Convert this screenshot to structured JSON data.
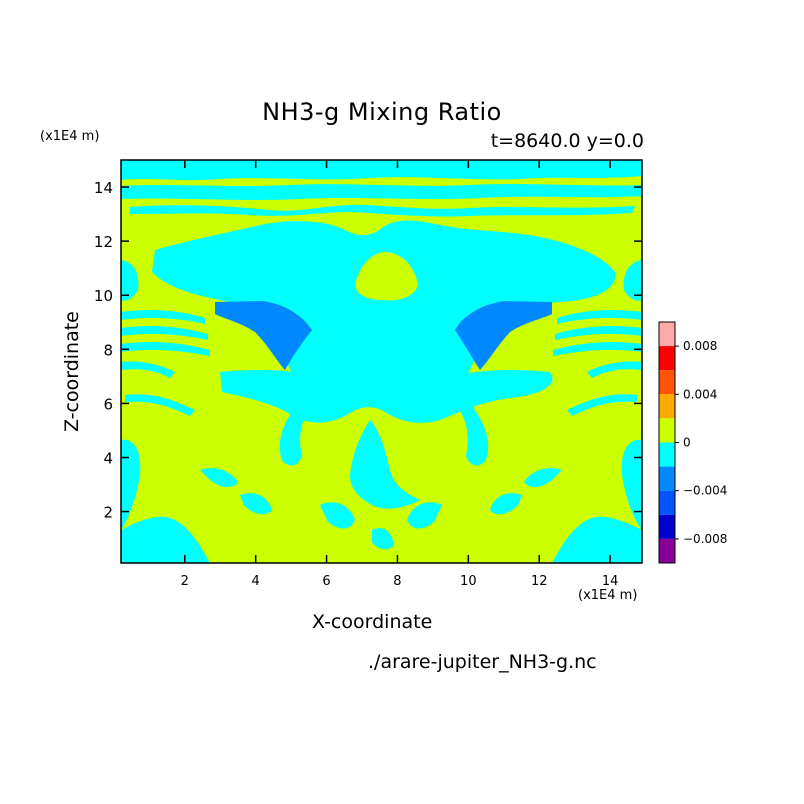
{
  "chart_data": {
    "type": "heatmap",
    "title": "NH3-g Mixing Ratio",
    "subtitle": "t=8640.0 y=0.0",
    "xlabel": "X-coordinate",
    "ylabel": "Z-coordinate",
    "x_units": "(x1E4 m)",
    "y_units": "(x1E4 m)",
    "xlim": [
      0.2,
      14.9
    ],
    "ylim": [
      0.1,
      15.0
    ],
    "x_ticks": [
      2,
      4,
      6,
      8,
      10,
      12,
      14
    ],
    "y_ticks": [
      2,
      4,
      6,
      8,
      10,
      12,
      14
    ],
    "colorbar": {
      "ticks": [
        0.008,
        0.004,
        0,
        -0.004,
        -0.008
      ],
      "tick_labels": [
        "0.008",
        "0.004",
        "0",
        "−0.004",
        "−0.008"
      ],
      "levels": [
        {
          "from": 0.008,
          "to": 0.01,
          "color": "#ffaaaa"
        },
        {
          "from": 0.006,
          "to": 0.008,
          "color": "#ff0000"
        },
        {
          "from": 0.004,
          "to": 0.006,
          "color": "#ff5500"
        },
        {
          "from": 0.002,
          "to": 0.004,
          "color": "#ffaa00"
        },
        {
          "from": 0.0,
          "to": 0.002,
          "color": "#ccff00"
        },
        {
          "from": -0.002,
          "to": 0.0,
          "color": "#00ffff"
        },
        {
          "from": -0.004,
          "to": -0.002,
          "color": "#0088ff"
        },
        {
          "from": -0.006,
          "to": -0.004,
          "color": "#0055ff"
        },
        {
          "from": -0.008,
          "to": -0.006,
          "color": "#0000cc"
        },
        {
          "from": -0.01,
          "to": -0.008,
          "color": "#880099"
        }
      ]
    },
    "source": "./arare-jupiter_NH3-g.nc",
    "field_colors": {
      "positive": "#ccff00",
      "slightly_negative": "#00ffff",
      "negative": "#0088ff"
    }
  }
}
